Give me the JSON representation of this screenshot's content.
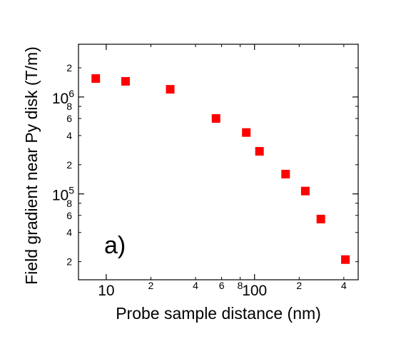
{
  "chart_data": {
    "type": "scatter",
    "xlabel": "Probe sample distance (nm)",
    "ylabel": "Field gradient near Py disk (T/m)",
    "panel_label": "a)",
    "xscale": "log",
    "yscale": "log",
    "xlim": [
      6.5,
      500
    ],
    "ylim": [
      13000,
      3500000
    ],
    "grid": false,
    "marker_color": "#ff0000",
    "marker_shape": "square",
    "series": [
      {
        "x": [
          8.5,
          13.5,
          27,
          55,
          88,
          108,
          162,
          220,
          280,
          410
        ],
        "y": [
          1550000,
          1450000,
          1200000,
          600000,
          430000,
          275000,
          160000,
          107000,
          55000,
          21000
        ]
      }
    ],
    "x_major_ticks": [
      {
        "value": 10,
        "label": "10"
      },
      {
        "value": 100,
        "label": "100"
      }
    ],
    "x_minor_ticks": [
      {
        "value": 20,
        "label": "2"
      },
      {
        "value": 40,
        "label": "4"
      },
      {
        "value": 60,
        "label": "6"
      },
      {
        "value": 80,
        "label": "8"
      },
      {
        "value": 200,
        "label": "2"
      },
      {
        "value": 400,
        "label": "4"
      }
    ],
    "y_major_ticks": [
      {
        "value": 100000,
        "mantissa": "10",
        "exponent": "5"
      },
      {
        "value": 1000000,
        "mantissa": "10",
        "exponent": "6"
      }
    ],
    "y_minor_ticks": [
      {
        "value": 20000,
        "label": "2"
      },
      {
        "value": 40000,
        "label": "4"
      },
      {
        "value": 60000,
        "label": "6"
      },
      {
        "value": 80000,
        "label": "8"
      },
      {
        "value": 200000,
        "label": "2"
      },
      {
        "value": 400000,
        "label": "4"
      },
      {
        "value": 600000,
        "label": "6"
      },
      {
        "value": 800000,
        "label": "8"
      },
      {
        "value": 2000000,
        "label": "2"
      }
    ]
  }
}
